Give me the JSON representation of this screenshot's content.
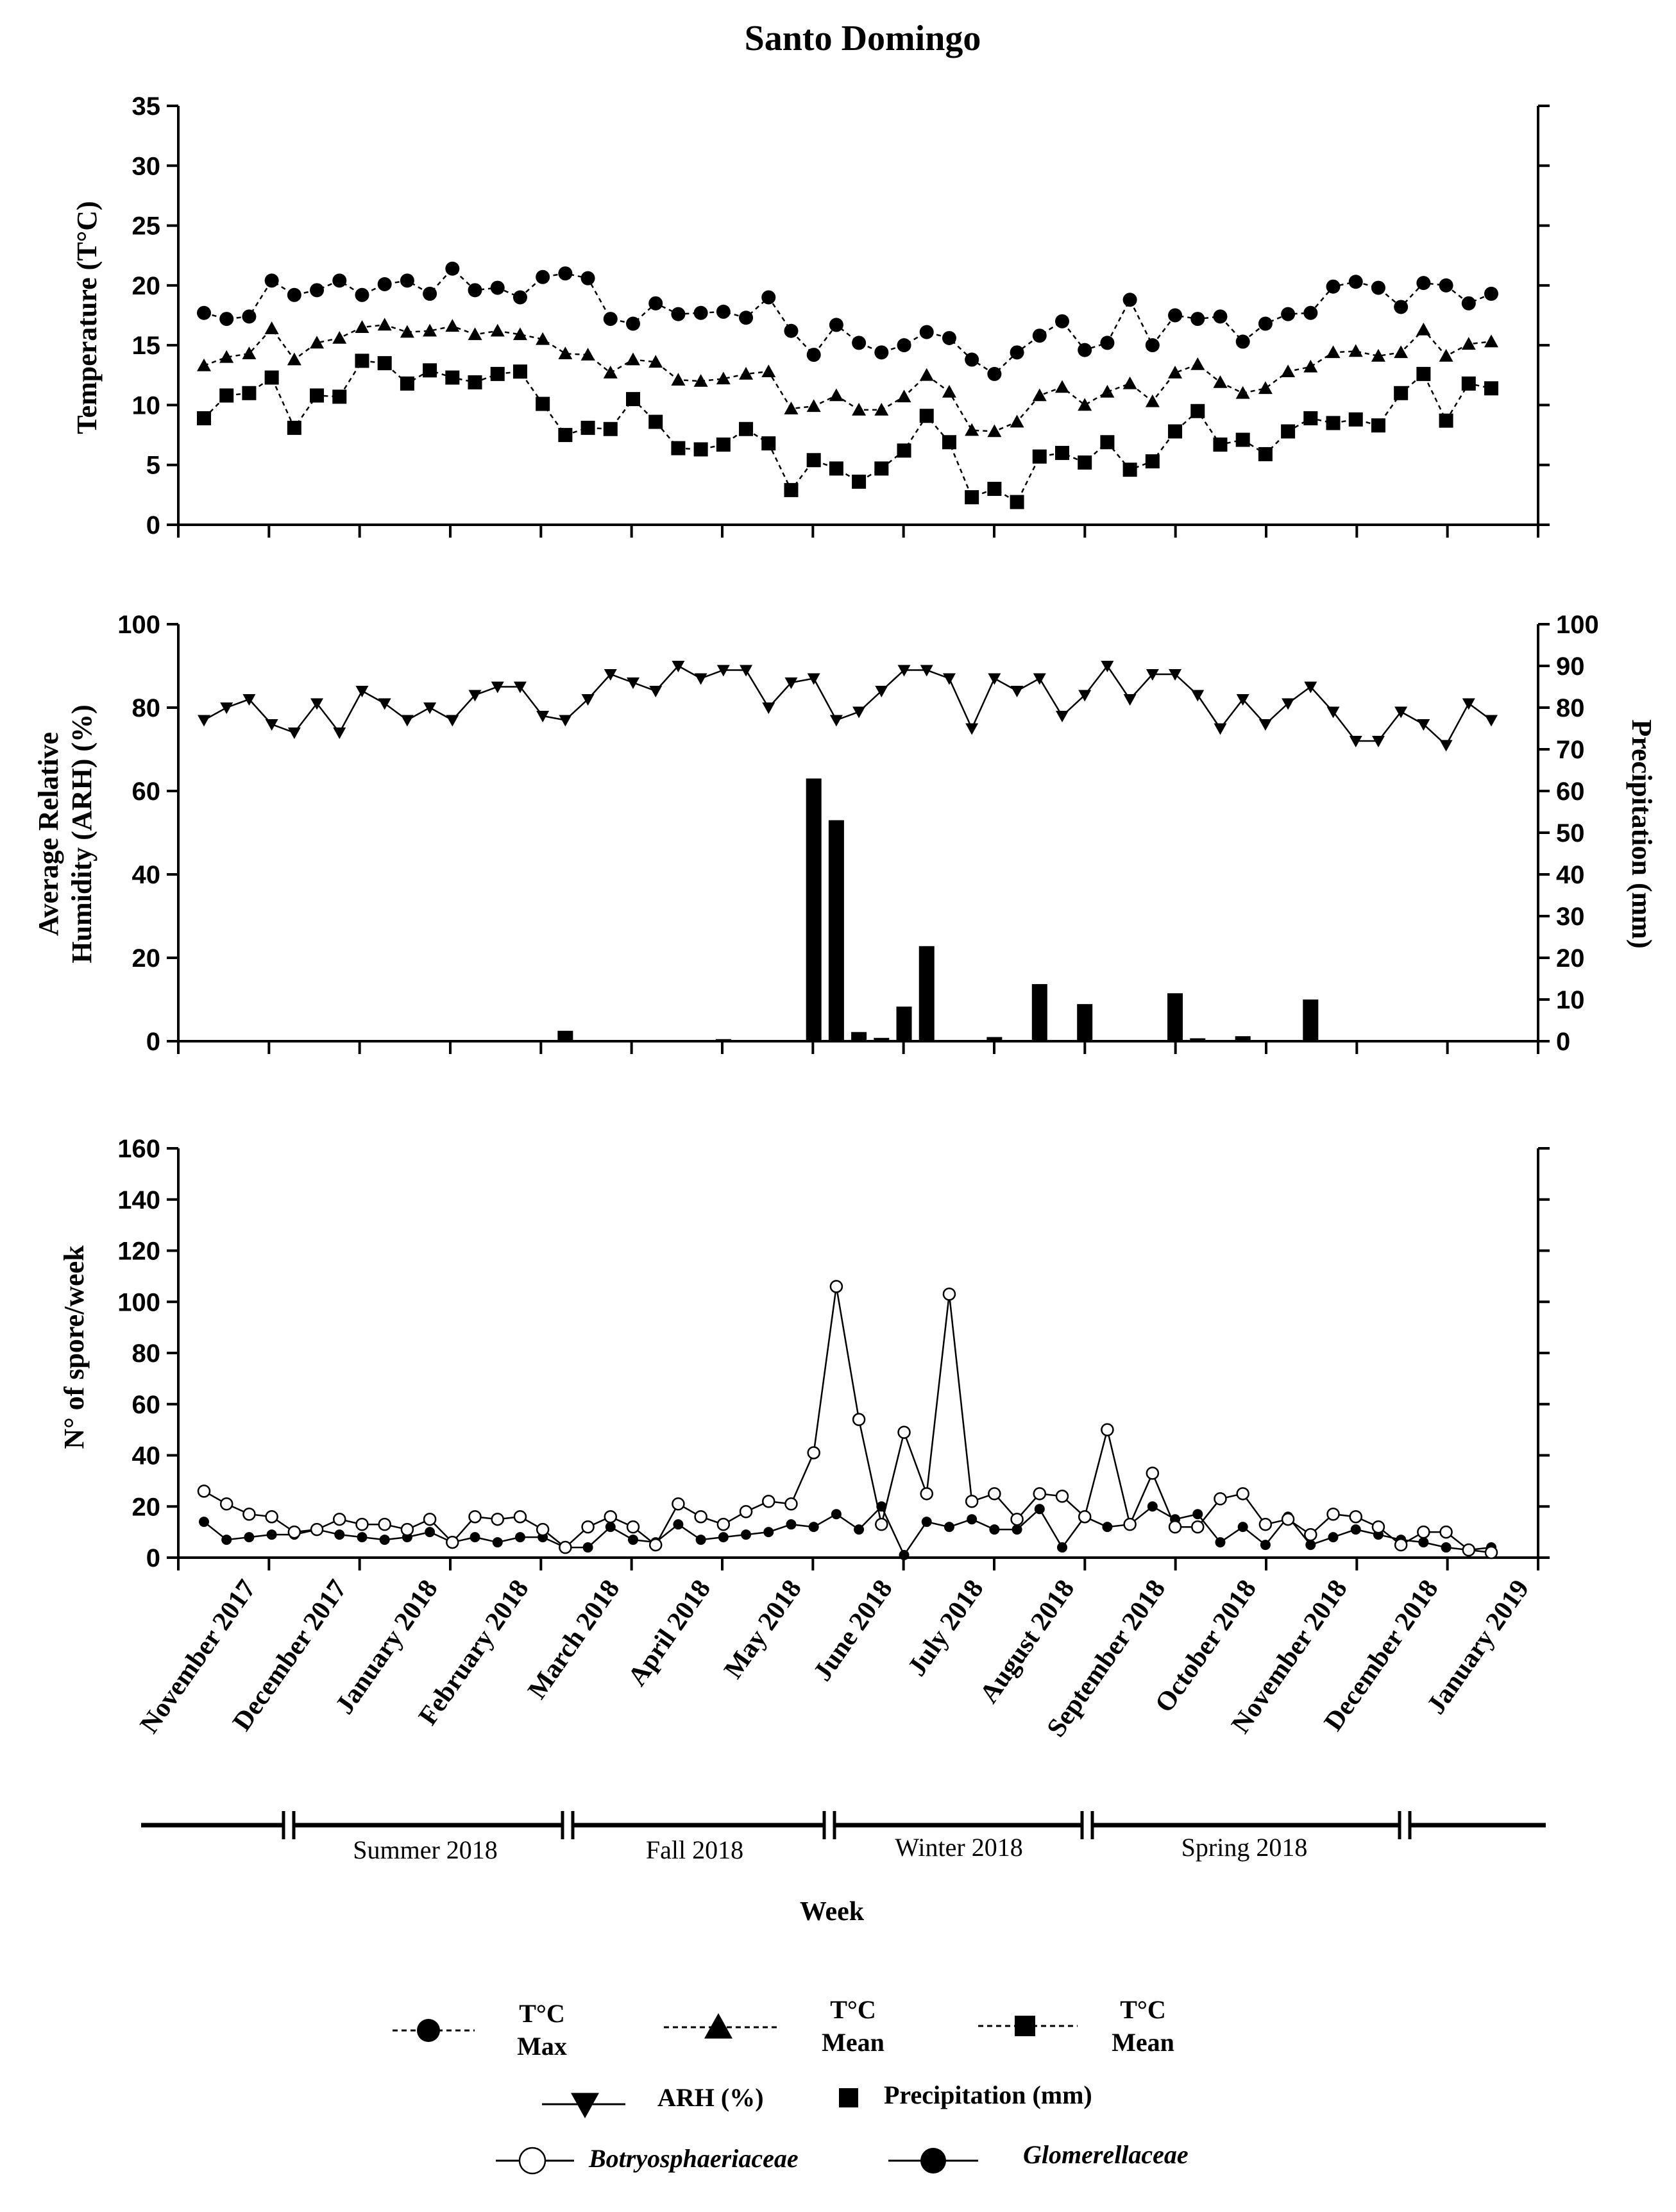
{
  "chart_data": [
    {
      "type": "line",
      "title": "Santo Domingo",
      "ylabel": "Temperature (T°C)",
      "ylim": [
        0,
        35
      ],
      "yticks": [
        "0",
        "5",
        "10",
        "15",
        "20",
        "25",
        "30",
        "35"
      ],
      "series": [
        {
          "name": "T°C Max",
          "marker": "circle",
          "style": "dashed",
          "values": [
            17.7,
            17.2,
            17.4,
            20.4,
            19.2,
            19.6,
            20.4,
            19.2,
            20.1,
            20.4,
            19.3,
            21.4,
            19.6,
            19.8,
            19.0,
            20.7,
            21.0,
            20.6,
            17.2,
            16.8,
            18.5,
            17.6,
            17.7,
            17.8,
            17.3,
            19.0,
            16.2,
            14.2,
            16.7,
            15.2,
            14.4,
            15.0,
            16.1,
            15.6,
            13.8,
            12.6,
            14.4,
            15.8,
            17.0,
            14.6,
            15.2,
            18.8,
            15.0,
            17.5,
            17.2,
            17.4,
            15.3,
            16.8,
            17.6,
            17.7,
            19.9,
            20.3,
            19.8,
            18.2,
            20.2,
            20.0,
            18.5,
            19.3
          ]
        },
        {
          "name": "T°C Mean",
          "marker": "triangle",
          "style": "dashed",
          "values": [
            13.3,
            14.0,
            14.3,
            16.4,
            13.8,
            15.2,
            15.6,
            16.5,
            16.7,
            16.1,
            16.2,
            16.6,
            15.9,
            16.2,
            15.9,
            15.5,
            14.3,
            14.2,
            12.7,
            13.8,
            13.6,
            12.1,
            12.0,
            12.2,
            12.6,
            12.8,
            9.7,
            9.9,
            10.8,
            9.6,
            9.6,
            10.7,
            12.5,
            11.1,
            7.9,
            7.8,
            8.6,
            10.8,
            11.5,
            10.0,
            11.1,
            11.8,
            10.3,
            12.7,
            13.4,
            11.9,
            11.0,
            11.4,
            12.8,
            13.2,
            14.4,
            14.5,
            14.1,
            14.4,
            16.3,
            14.1,
            15.1,
            15.3
          ]
        },
        {
          "name": "T°C Mean",
          "marker": "square",
          "style": "dashed",
          "values": [
            8.9,
            10.8,
            11.0,
            12.3,
            8.1,
            10.8,
            10.7,
            13.7,
            13.5,
            11.8,
            12.9,
            12.3,
            11.9,
            12.6,
            12.8,
            10.1,
            7.5,
            8.1,
            8.0,
            10.5,
            8.6,
            6.4,
            6.3,
            6.7,
            8.0,
            6.8,
            2.9,
            5.4,
            4.7,
            3.6,
            4.7,
            6.2,
            9.1,
            6.9,
            2.3,
            3.0,
            1.9,
            5.7,
            6.0,
            5.2,
            6.9,
            4.6,
            5.3,
            7.8,
            9.5,
            6.7,
            7.1,
            5.9,
            7.8,
            8.9,
            8.5,
            8.8,
            8.3,
            11.0,
            12.6,
            8.7,
            11.8,
            11.4
          ]
        }
      ]
    },
    {
      "type": "line+bar",
      "ylabel_left": "Average Relative Humidity (ARH) (%)",
      "ylabel_right": "Precipitation (mm)",
      "ylim_left": [
        0,
        100
      ],
      "ylim_right": [
        0,
        100
      ],
      "yticks_left": [
        "0",
        "20",
        "40",
        "60",
        "80",
        "100"
      ],
      "yticks_right": [
        "0",
        "10",
        "20",
        "30",
        "40",
        "50",
        "60",
        "70",
        "80",
        "90",
        "100"
      ],
      "series": [
        {
          "name": "ARH (%)",
          "marker": "triangle-down",
          "axis": "left",
          "values": [
            77,
            80,
            82,
            76,
            74,
            81,
            74,
            84,
            81,
            77,
            80,
            77,
            83,
            85,
            85,
            78,
            77,
            82,
            88,
            86,
            84,
            90,
            87,
            89,
            89,
            80,
            86,
            87,
            77,
            79,
            84,
            89,
            89,
            87,
            75,
            87,
            84,
            87,
            78,
            83,
            90,
            82,
            88,
            88,
            83,
            75,
            82,
            76,
            81,
            85,
            79,
            72,
            72,
            79,
            76,
            71,
            81,
            77
          ]
        },
        {
          "name": "Precipitation (mm)",
          "type": "bar",
          "axis": "right",
          "values": [
            0,
            0,
            0,
            0,
            0,
            0,
            0,
            0,
            0,
            0,
            0,
            0,
            0,
            0,
            0,
            0,
            2.5,
            0,
            0,
            0,
            0,
            0,
            0,
            0.5,
            0,
            0,
            0,
            63,
            53,
            2.2,
            0.8,
            8.3,
            22.8,
            0,
            0,
            1,
            0,
            13.7,
            0,
            8.9,
            0,
            0,
            0,
            11.5,
            0.7,
            0,
            1.2,
            0,
            0,
            10,
            0,
            0,
            0,
            0,
            0,
            0,
            0,
            0
          ]
        }
      ]
    },
    {
      "type": "line",
      "ylabel": "N° of spore/week",
      "ylim": [
        0,
        160
      ],
      "yticks": [
        "0",
        "20",
        "40",
        "60",
        "80",
        "100",
        "120",
        "140",
        "160"
      ],
      "series": [
        {
          "name": "Botryosphaeriaceae",
          "marker": "open-circle",
          "style": "solid",
          "values": [
            26,
            21,
            17,
            16,
            10,
            11,
            15,
            13,
            13,
            11,
            15,
            6,
            16,
            15,
            16,
            11,
            4,
            12,
            16,
            12,
            5,
            21,
            16,
            13,
            18,
            22,
            21,
            41,
            106,
            54,
            13,
            49,
            25,
            103,
            22,
            25,
            15,
            25,
            24,
            16,
            50,
            13,
            33,
            12,
            12,
            23,
            25,
            13,
            15,
            9,
            17,
            16,
            12,
            5,
            10,
            10,
            3,
            2
          ]
        },
        {
          "name": "Glomerellaceae",
          "marker": "filled-circle",
          "style": "solid",
          "values": [
            14,
            7,
            8,
            9,
            9,
            11,
            9,
            8,
            7,
            8,
            10,
            6,
            8,
            6,
            8,
            8,
            4,
            4,
            12,
            7,
            6,
            13,
            7,
            8,
            9,
            10,
            13,
            12,
            17,
            11,
            20,
            1,
            14,
            12,
            15,
            11,
            11,
            19,
            4,
            16,
            12,
            13,
            20,
            15,
            17,
            6,
            12,
            5,
            16,
            5,
            8,
            11,
            9,
            7,
            6,
            4,
            3,
            4
          ]
        }
      ]
    }
  ],
  "x_axis": {
    "months": [
      "November 2017",
      "December 2017",
      "January 2018",
      "February 2018",
      "March 2018",
      "April 2018",
      "May 2018",
      "June 2018",
      "July 2018",
      "August 2018",
      "September 2018",
      "October 2018",
      "November 2018",
      "December 2018",
      "January 2019"
    ],
    "seasons": [
      "Summer 2018",
      "Fall 2018",
      "Winter 2018",
      "Spring 2018"
    ],
    "label": "Week"
  },
  "legend": {
    "items": [
      {
        "line1": "T°C",
        "line2": "Max",
        "marker": "circle"
      },
      {
        "line1": "T°C",
        "line2": "Mean",
        "marker": "triangle"
      },
      {
        "line1": "T°C",
        "line2": "Mean",
        "marker": "square"
      },
      {
        "label": "ARH (%)",
        "marker": "triangle-down"
      },
      {
        "label": "Precipitation (mm)",
        "marker": "bar"
      },
      {
        "label": "Botryosphaeriaceae",
        "marker": "open-circle"
      },
      {
        "label": "Glomerellaceae",
        "marker": "filled-circle"
      }
    ]
  }
}
